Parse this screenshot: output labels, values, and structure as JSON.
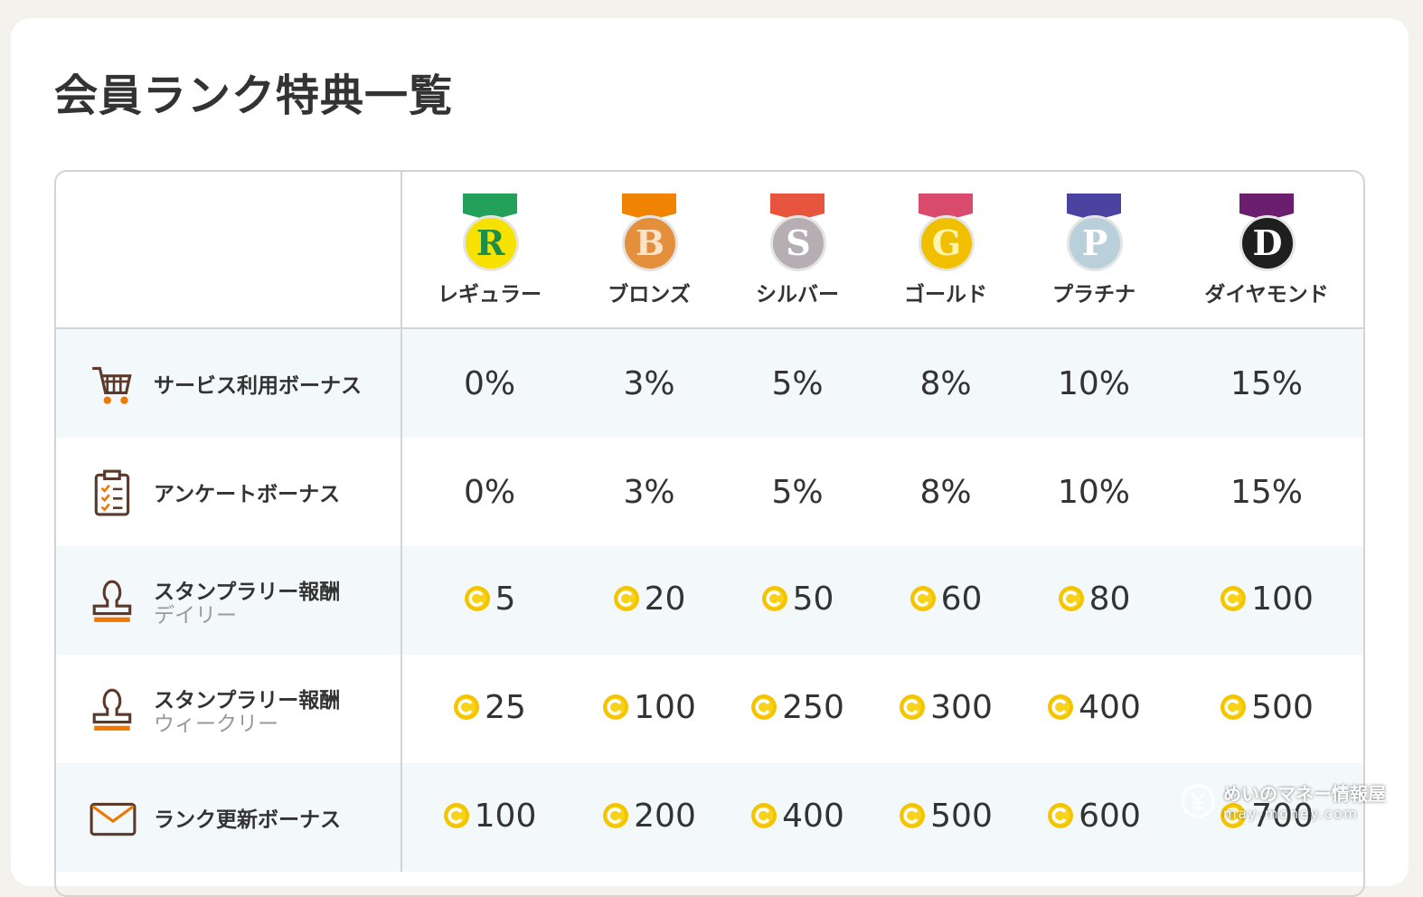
{
  "header": {
    "title": "会員ランク特典一覧"
  },
  "table": {
    "ranks": [
      {
        "letter": "R",
        "name": "レギュラー"
      },
      {
        "letter": "B",
        "name": "ブロンズ"
      },
      {
        "letter": "S",
        "name": "シルバー"
      },
      {
        "letter": "G",
        "name": "ゴールド"
      },
      {
        "letter": "P",
        "name": "プラチナ"
      },
      {
        "letter": "D",
        "name": "ダイヤモンド"
      }
    ],
    "rows": [
      {
        "label": "サービス利用ボーナス",
        "values": [
          "0%",
          "3%",
          "5%",
          "8%",
          "10%",
          "15%"
        ]
      },
      {
        "label": "アンケートボーナス",
        "values": [
          "0%",
          "3%",
          "5%",
          "8%",
          "10%",
          "15%"
        ]
      },
      {
        "label": "スタンプラリー報酬",
        "sublabel": "デイリー",
        "values": [
          5,
          20,
          50,
          60,
          80,
          100
        ]
      },
      {
        "label": "スタンプラリー報酬",
        "sublabel": "ウィークリー",
        "values": [
          25,
          100,
          250,
          300,
          400,
          500
        ]
      },
      {
        "label": "ランク更新ボーナス",
        "values": [
          100,
          200,
          400,
          500,
          600,
          700
        ]
      }
    ]
  },
  "watermark": {
    "name": "めいのマネー情報屋",
    "url": "may-money.com"
  }
}
